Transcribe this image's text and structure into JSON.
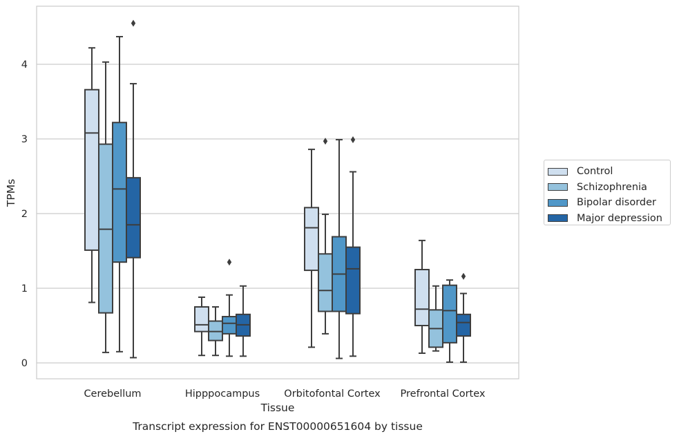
{
  "chart_data": {
    "type": "box",
    "title": "",
    "caption": "Transcript expression for ENST00000651604 by tissue",
    "xlabel": "Tissue",
    "ylabel": "TPMs",
    "ylim": [
      -0.2,
      4.78
    ],
    "yticks": [
      0,
      1,
      2,
      3,
      4
    ],
    "grid": "horizontal",
    "legend_position": "right",
    "categories": [
      "Cerebellum",
      "Hipppocampus",
      "Orbitofontal Cortex",
      "Prefrontal Cortex"
    ],
    "series": [
      {
        "name": "Control",
        "color": "#cfdfef",
        "boxes": [
          {
            "min": 0.81,
            "q1": 1.51,
            "median": 3.08,
            "q3": 3.66,
            "max": 4.22,
            "outliers": []
          },
          {
            "min": 0.1,
            "q1": 0.42,
            "median": 0.51,
            "q3": 0.75,
            "max": 0.88,
            "outliers": []
          },
          {
            "min": 0.21,
            "q1": 1.24,
            "median": 1.81,
            "q3": 2.08,
            "max": 2.86,
            "outliers": []
          },
          {
            "min": 0.13,
            "q1": 0.5,
            "median": 0.72,
            "q3": 1.25,
            "max": 1.64,
            "outliers": []
          }
        ]
      },
      {
        "name": "Schizophrenia",
        "color": "#94c2dd",
        "boxes": [
          {
            "min": 0.14,
            "q1": 0.67,
            "median": 1.79,
            "q3": 2.93,
            "max": 4.03,
            "outliers": []
          },
          {
            "min": 0.1,
            "q1": 0.3,
            "median": 0.42,
            "q3": 0.56,
            "max": 0.75,
            "outliers": []
          },
          {
            "min": 0.39,
            "q1": 0.69,
            "median": 0.97,
            "q3": 1.46,
            "max": 1.99,
            "outliers": [
              2.97
            ]
          },
          {
            "min": 0.16,
            "q1": 0.21,
            "median": 0.46,
            "q3": 0.71,
            "max": 1.03,
            "outliers": []
          }
        ]
      },
      {
        "name": "Bipolar disorder",
        "color": "#5097c8",
        "boxes": [
          {
            "min": 0.15,
            "q1": 1.35,
            "median": 2.33,
            "q3": 3.22,
            "max": 4.37,
            "outliers": []
          },
          {
            "min": 0.09,
            "q1": 0.39,
            "median": 0.53,
            "q3": 0.62,
            "max": 0.91,
            "outliers": [
              1.35
            ]
          },
          {
            "min": 0.06,
            "q1": 0.69,
            "median": 1.19,
            "q3": 1.69,
            "max": 2.99,
            "outliers": []
          },
          {
            "min": 0.01,
            "q1": 0.27,
            "median": 0.7,
            "q3": 1.04,
            "max": 1.11,
            "outliers": []
          }
        ]
      },
      {
        "name": "Major depression",
        "color": "#2465a5",
        "boxes": [
          {
            "min": 0.07,
            "q1": 1.41,
            "median": 1.85,
            "q3": 2.48,
            "max": 3.74,
            "outliers": [
              4.55
            ]
          },
          {
            "min": 0.09,
            "q1": 0.36,
            "median": 0.51,
            "q3": 0.65,
            "max": 1.03,
            "outliers": []
          },
          {
            "min": 0.09,
            "q1": 0.66,
            "median": 1.26,
            "q3": 1.55,
            "max": 2.56,
            "outliers": [
              2.99
            ]
          },
          {
            "min": 0.01,
            "q1": 0.36,
            "median": 0.54,
            "q3": 0.65,
            "max": 0.93,
            "outliers": [
              1.16
            ]
          }
        ]
      }
    ]
  }
}
